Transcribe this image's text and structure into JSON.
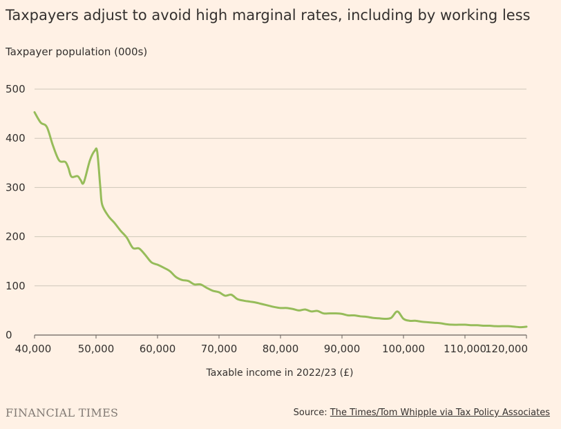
{
  "colors": {
    "background": "#fff1e5",
    "line": "#96bc5a",
    "grid": "#cec6b9",
    "text": "#33302e",
    "logo": "#807973"
  },
  "chart_data": {
    "type": "line",
    "title": "Taxpayers adjust to avoid high marginal rates, including by working less",
    "ylabel": "Taxpayer population (000s)",
    "xlabel": "Taxable income in 2022/23 (£)",
    "xlim": [
      40000,
      120000
    ],
    "ylim": [
      0,
      500
    ],
    "xticks": [
      40000,
      50000,
      60000,
      70000,
      80000,
      90000,
      100000,
      110000,
      120000
    ],
    "xtick_labels": [
      "40,000",
      "50,000",
      "60,000",
      "70,000",
      "80,000",
      "90,000",
      "100,000",
      "110,000",
      "120,000"
    ],
    "yticks": [
      0,
      100,
      200,
      300,
      400,
      500
    ],
    "ytick_labels": [
      "0",
      "100",
      "200",
      "300",
      "400",
      "500"
    ],
    "grid": true,
    "series": [
      {
        "name": "Taxpayer population",
        "x": [
          40000,
          41000,
          42000,
          43000,
          44000,
          45000,
          45500,
          46000,
          47000,
          47500,
          48000,
          49000,
          49800,
          50200,
          50700,
          51000,
          52000,
          53000,
          54000,
          55000,
          56000,
          57000,
          58000,
          59000,
          60000,
          61000,
          62000,
          63000,
          64000,
          65000,
          66000,
          67000,
          68000,
          69000,
          70000,
          71000,
          72000,
          73000,
          74000,
          75000,
          76000,
          77000,
          78000,
          79000,
          80000,
          81000,
          82000,
          83000,
          84000,
          85000,
          86000,
          87000,
          88000,
          89000,
          90000,
          91000,
          92000,
          93000,
          94000,
          95000,
          96000,
          97000,
          98000,
          99000,
          100000,
          101000,
          102000,
          103000,
          104000,
          105000,
          106000,
          107000,
          108000,
          109000,
          110000,
          111000,
          112000,
          113000,
          114000,
          115000,
          116000,
          117000,
          118000,
          119000,
          120000
        ],
        "values": [
          453,
          432,
          423,
          385,
          355,
          352,
          340,
          322,
          323,
          315,
          310,
          355,
          375,
          372,
          300,
          265,
          242,
          228,
          212,
          198,
          177,
          176,
          163,
          148,
          143,
          137,
          130,
          118,
          112,
          110,
          103,
          103,
          96,
          90,
          87,
          80,
          82,
          73,
          70,
          68,
          66,
          63,
          60,
          57,
          55,
          55,
          53,
          50,
          52,
          48,
          49,
          44,
          44,
          44,
          43,
          40,
          40,
          38,
          37,
          35,
          34,
          33,
          35,
          48,
          33,
          29,
          29,
          27,
          26,
          25,
          24,
          22,
          21,
          21,
          21,
          20,
          20,
          19,
          19,
          18,
          18,
          18,
          17,
          16,
          17
        ]
      }
    ]
  },
  "footer": {
    "logo_text": "FINANCIAL TIMES",
    "source_prefix": "Source: ",
    "source_link": "The Times/Tom Whipple via Tax Policy Associates"
  }
}
